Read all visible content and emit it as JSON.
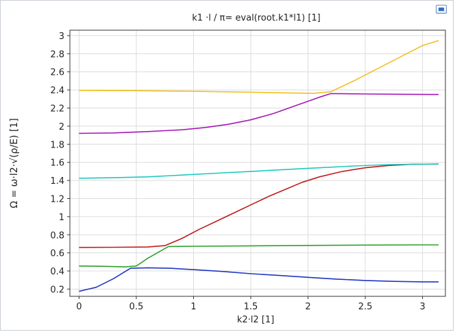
{
  "chart_data": {
    "type": "line",
    "title": "k1 ·l / π= eval(root.k1*l1) [1]",
    "xlabel": "k2·l2 [1]",
    "ylabel": "Ω = ω·l2·√(ρ/E) [1]",
    "xlim": [
      -0.08,
      3.2
    ],
    "ylim": [
      0.12,
      3.06
    ],
    "xticks": [
      "0",
      "0.5",
      "1",
      "1.5",
      "2",
      "2.5",
      "3"
    ],
    "yticks": [
      "0.2",
      "0.4",
      "0.6",
      "0.8",
      "1",
      "1.2",
      "1.4",
      "1.6",
      "1.8",
      "2",
      "2.2",
      "2.4",
      "2.6",
      "2.8",
      "3"
    ],
    "grid": true,
    "legend": "none",
    "series": [
      {
        "color": "#2036c0",
        "x": [
          0,
          0.15,
          0.3,
          0.45,
          0.6,
          0.8,
          1.0,
          1.25,
          1.5,
          1.75,
          2.0,
          2.25,
          2.5,
          2.75,
          3.0,
          3.14
        ],
        "y": [
          0.175,
          0.22,
          0.315,
          0.43,
          0.435,
          0.43,
          0.415,
          0.395,
          0.37,
          0.35,
          0.33,
          0.31,
          0.295,
          0.285,
          0.28,
          0.28
        ]
      },
      {
        "color": "#2ca02c",
        "x": [
          0,
          0.2,
          0.4,
          0.5,
          0.6,
          0.78,
          1.0,
          1.5,
          2.0,
          2.5,
          3.0,
          3.14
        ],
        "y": [
          0.455,
          0.452,
          0.445,
          0.455,
          0.54,
          0.67,
          0.673,
          0.678,
          0.682,
          0.686,
          0.688,
          0.688
        ]
      },
      {
        "color": "#bf1b1b",
        "x": [
          0,
          0.3,
          0.6,
          0.75,
          0.9,
          1.05,
          1.2,
          1.35,
          1.5,
          1.65,
          1.8,
          1.95,
          2.1,
          2.3,
          2.5,
          2.7,
          2.9,
          3.14
        ],
        "y": [
          0.66,
          0.662,
          0.665,
          0.68,
          0.76,
          0.86,
          0.95,
          1.04,
          1.13,
          1.22,
          1.3,
          1.38,
          1.44,
          1.5,
          1.54,
          1.565,
          1.578,
          1.582
        ]
      },
      {
        "color": "#1ec8be",
        "x": [
          0,
          0.3,
          0.6,
          0.9,
          1.2,
          1.5,
          1.8,
          2.1,
          2.4,
          2.7,
          3.0,
          3.14
        ],
        "y": [
          1.425,
          1.43,
          1.44,
          1.46,
          1.48,
          1.5,
          1.52,
          1.54,
          1.56,
          1.575,
          1.58,
          1.582
        ]
      },
      {
        "color": "#a418b6",
        "x": [
          0,
          0.3,
          0.6,
          0.9,
          1.1,
          1.3,
          1.5,
          1.7,
          1.9,
          2.1,
          2.2,
          2.5,
          2.8,
          3.14
        ],
        "y": [
          1.92,
          1.925,
          1.94,
          1.96,
          1.985,
          2.02,
          2.07,
          2.14,
          2.23,
          2.32,
          2.36,
          2.355,
          2.352,
          2.35
        ]
      },
      {
        "color": "#f0c020",
        "x": [
          0,
          0.5,
          1.0,
          1.5,
          1.9,
          2.05,
          2.2,
          2.4,
          2.6,
          2.8,
          3.0,
          3.14
        ],
        "y": [
          2.395,
          2.392,
          2.385,
          2.375,
          2.365,
          2.362,
          2.38,
          2.5,
          2.63,
          2.76,
          2.89,
          2.945
        ]
      }
    ]
  }
}
